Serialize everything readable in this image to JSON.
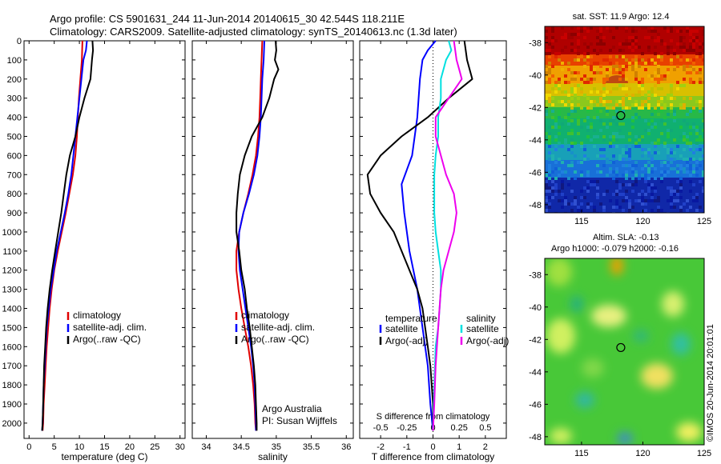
{
  "header": {
    "line1": "Argo profile: CS 5901631_244 11-Jun-2014 20140615_30 42.544S 118.211E",
    "line2": "Climatology: CARS2009. Satellite-adjusted climatology: synTS_20140613.nc (1.3d later)"
  },
  "credits": {
    "line1": "Argo Australia",
    "line2": "PI: Susan Wijffels"
  },
  "stamp": "©IMOS 20-Jun-2014 20:01:01",
  "colors": {
    "climatology": "#e00000",
    "satellite": "#0000ff",
    "argo": "#000000",
    "sal_satellite": "#00e0e0",
    "sal_argo": "#ee00ee"
  },
  "depth_ticks": [
    0,
    100,
    200,
    300,
    400,
    500,
    600,
    700,
    800,
    900,
    1000,
    1100,
    1200,
    1300,
    1400,
    1500,
    1600,
    1700,
    1800,
    1900,
    2000
  ],
  "chart_data": [
    {
      "type": "line",
      "xlabel": "temperature (deg C)",
      "xlim": [
        -1,
        31
      ],
      "ylim": [
        2080,
        0
      ],
      "xticks": [
        0,
        5,
        10,
        15,
        20,
        25,
        30
      ],
      "legend": [
        "climatology",
        "satellite-adj. clim.",
        "Argo(..raw -QC)"
      ],
      "series": [
        {
          "name": "climatology",
          "color": "#e00000",
          "points": [
            [
              10.6,
              0
            ],
            [
              10.5,
              100
            ],
            [
              10.2,
              200
            ],
            [
              9.9,
              300
            ],
            [
              9.7,
              400
            ],
            [
              9.5,
              500
            ],
            [
              9.2,
              600
            ],
            [
              8.7,
              700
            ],
            [
              8.0,
              800
            ],
            [
              7.3,
              900
            ],
            [
              6.5,
              1000
            ],
            [
              5.7,
              1100
            ],
            [
              5.0,
              1200
            ],
            [
              4.5,
              1300
            ],
            [
              4.1,
              1400
            ],
            [
              3.8,
              1500
            ],
            [
              3.5,
              1600
            ],
            [
              3.3,
              1700
            ],
            [
              3.1,
              1800
            ],
            [
              2.9,
              1900
            ],
            [
              2.8,
              2000
            ],
            [
              2.7,
              2040
            ]
          ]
        },
        {
          "name": "satellite-adj. clim.",
          "color": "#0000ff",
          "points": [
            [
              11.5,
              0
            ],
            [
              11.3,
              50
            ],
            [
              10.8,
              100
            ],
            [
              10.4,
              200
            ],
            [
              10.0,
              300
            ],
            [
              9.6,
              400
            ],
            [
              9.2,
              500
            ],
            [
              8.8,
              600
            ],
            [
              8.4,
              700
            ],
            [
              7.8,
              800
            ],
            [
              7.1,
              900
            ],
            [
              6.3,
              1000
            ],
            [
              5.5,
              1100
            ],
            [
              4.9,
              1200
            ],
            [
              4.3,
              1300
            ],
            [
              3.9,
              1400
            ],
            [
              3.5,
              1500
            ],
            [
              3.3,
              1600
            ],
            [
              3.1,
              1700
            ],
            [
              2.9,
              1800
            ],
            [
              2.8,
              1900
            ],
            [
              2.7,
              2000
            ],
            [
              2.6,
              2040
            ]
          ]
        },
        {
          "name": "Argo(..raw -QC)",
          "color": "#000000",
          "points": [
            [
              12.6,
              0
            ],
            [
              12.7,
              50
            ],
            [
              12.5,
              100
            ],
            [
              12.2,
              200
            ],
            [
              11.0,
              300
            ],
            [
              10.0,
              400
            ],
            [
              9.2,
              500
            ],
            [
              8.1,
              600
            ],
            [
              7.4,
              700
            ],
            [
              6.9,
              800
            ],
            [
              6.4,
              900
            ],
            [
              5.8,
              1000
            ],
            [
              5.2,
              1100
            ],
            [
              4.6,
              1200
            ],
            [
              4.1,
              1300
            ],
            [
              3.7,
              1400
            ],
            [
              3.4,
              1500
            ],
            [
              3.2,
              1600
            ],
            [
              3.0,
              1700
            ],
            [
              2.9,
              1800
            ],
            [
              2.8,
              1900
            ],
            [
              2.7,
              2000
            ],
            [
              2.6,
              2040
            ]
          ]
        }
      ]
    },
    {
      "type": "line",
      "xlabel": "salinity",
      "xlim": [
        33.8,
        36.1
      ],
      "ylim": [
        2080,
        0
      ],
      "xticks": [
        34,
        34.5,
        35,
        35.5,
        36
      ],
      "legend": [
        "climatology",
        "satellite-adj. clim.",
        "Argo(..raw -QC)"
      ],
      "series": [
        {
          "name": "climatology",
          "color": "#e00000",
          "points": [
            [
              34.8,
              0
            ],
            [
              34.79,
              100
            ],
            [
              34.78,
              200
            ],
            [
              34.77,
              300
            ],
            [
              34.76,
              400
            ],
            [
              34.74,
              500
            ],
            [
              34.71,
              600
            ],
            [
              34.66,
              700
            ],
            [
              34.6,
              800
            ],
            [
              34.53,
              900
            ],
            [
              34.47,
              1000
            ],
            [
              34.43,
              1100
            ],
            [
              34.43,
              1200
            ],
            [
              34.46,
              1300
            ],
            [
              34.5,
              1400
            ],
            [
              34.55,
              1500
            ],
            [
              34.6,
              1600
            ],
            [
              34.64,
              1700
            ],
            [
              34.67,
              1800
            ],
            [
              34.69,
              1900
            ],
            [
              34.7,
              2000
            ],
            [
              34.71,
              2040
            ]
          ]
        },
        {
          "name": "satellite-adj. clim.",
          "color": "#0000ff",
          "points": [
            [
              34.83,
              0
            ],
            [
              34.82,
              100
            ],
            [
              34.8,
              200
            ],
            [
              34.79,
              300
            ],
            [
              34.78,
              400
            ],
            [
              34.76,
              500
            ],
            [
              34.73,
              600
            ],
            [
              34.68,
              700
            ],
            [
              34.61,
              800
            ],
            [
              34.53,
              900
            ],
            [
              34.47,
              1000
            ],
            [
              34.46,
              1100
            ],
            [
              34.48,
              1200
            ],
            [
              34.52,
              1300
            ],
            [
              34.56,
              1400
            ],
            [
              34.6,
              1500
            ],
            [
              34.64,
              1600
            ],
            [
              34.67,
              1700
            ],
            [
              34.69,
              1800
            ],
            [
              34.7,
              1900
            ],
            [
              34.71,
              2000
            ],
            [
              34.71,
              2040
            ]
          ]
        },
        {
          "name": "Argo(..raw -QC)",
          "color": "#000000",
          "points": [
            [
              34.99,
              0
            ],
            [
              35.0,
              50
            ],
            [
              34.98,
              100
            ],
            [
              35.03,
              150
            ],
            [
              34.97,
              200
            ],
            [
              34.9,
              300
            ],
            [
              34.8,
              400
            ],
            [
              34.65,
              500
            ],
            [
              34.55,
              600
            ],
            [
              34.48,
              700
            ],
            [
              34.45,
              800
            ],
            [
              34.43,
              900
            ],
            [
              34.43,
              1000
            ],
            [
              34.47,
              1100
            ],
            [
              34.5,
              1200
            ],
            [
              34.55,
              1300
            ],
            [
              34.58,
              1400
            ],
            [
              34.62,
              1500
            ],
            [
              34.65,
              1600
            ],
            [
              34.68,
              1700
            ],
            [
              34.7,
              1800
            ],
            [
              34.71,
              1900
            ],
            [
              34.72,
              2000
            ],
            [
              34.72,
              2040
            ]
          ]
        }
      ]
    },
    {
      "type": "line",
      "title": "S difference from climatology",
      "xlabel": "T difference from climatology",
      "xlim": [
        -2.8,
        2.8
      ],
      "ylim": [
        2080,
        0
      ],
      "xticks": [
        -2,
        -1,
        0,
        1,
        2
      ],
      "top_ticks": [
        {
          "x": -2,
          "label": "-0.5"
        },
        {
          "x": -1,
          "label": "-0.25"
        },
        {
          "x": 0,
          "label": "0"
        },
        {
          "x": 1,
          "label": "0.25"
        },
        {
          "x": 2,
          "label": "0.5"
        }
      ],
      "legend_temperature": {
        "title": "temperature",
        "items": [
          "satellite",
          "Argo(-adj)"
        ]
      },
      "legend_salinity": {
        "title": "salinity",
        "items": [
          "satellite",
          "Argo(-adj)"
        ]
      },
      "series": [
        {
          "name": "temperature satellite",
          "color": "#0000ff",
          "points": [
            [
              0.1,
              0
            ],
            [
              -0.2,
              50
            ],
            [
              -0.4,
              100
            ],
            [
              -0.5,
              200
            ],
            [
              -0.6,
              400
            ],
            [
              -0.8,
              600
            ],
            [
              -1.2,
              750
            ],
            [
              -1.1,
              900
            ],
            [
              -0.9,
              1100
            ],
            [
              -0.6,
              1300
            ],
            [
              -0.4,
              1500
            ],
            [
              -0.2,
              1700
            ],
            [
              -0.1,
              1900
            ],
            [
              0,
              2040
            ]
          ]
        },
        {
          "name": "temperature Argo(-adj)",
          "color": "#000000",
          "points": [
            [
              1.2,
              0
            ],
            [
              1.3,
              100
            ],
            [
              1.5,
              200
            ],
            [
              0.6,
              300
            ],
            [
              -0.2,
              400
            ],
            [
              -1.2,
              500
            ],
            [
              -2.0,
              600
            ],
            [
              -2.5,
              700
            ],
            [
              -2.4,
              800
            ],
            [
              -2.0,
              900
            ],
            [
              -1.5,
              1000
            ],
            [
              -1.2,
              1100
            ],
            [
              -0.9,
              1200
            ],
            [
              -0.6,
              1300
            ],
            [
              -0.4,
              1400
            ],
            [
              -0.3,
              1500
            ],
            [
              -0.2,
              1600
            ],
            [
              -0.1,
              1700
            ],
            [
              -0.05,
              1800
            ],
            [
              0,
              1900
            ],
            [
              0,
              2040
            ]
          ]
        },
        {
          "name": "salinity satellite",
          "color": "#00e0e0",
          "points": [
            [
              0.6,
              0
            ],
            [
              0.7,
              50
            ],
            [
              0.5,
              100
            ],
            [
              0.3,
              200
            ],
            [
              0.3,
              300
            ],
            [
              0.2,
              400
            ],
            [
              0.2,
              500
            ],
            [
              0.1,
              600
            ],
            [
              0.05,
              700
            ],
            [
              0.05,
              800
            ],
            [
              0.05,
              900
            ],
            [
              0.1,
              1000
            ],
            [
              0.2,
              1100
            ],
            [
              0.3,
              1200
            ],
            [
              0.3,
              1300
            ],
            [
              0.25,
              1400
            ],
            [
              0.2,
              1500
            ],
            [
              0.1,
              1600
            ],
            [
              0.05,
              1800
            ],
            [
              0,
              2040
            ]
          ]
        },
        {
          "name": "salinity Argo(-adj)",
          "color": "#ee00ee",
          "points": [
            [
              0.8,
              0
            ],
            [
              0.9,
              100
            ],
            [
              1.0,
              150
            ],
            [
              1.1,
              200
            ],
            [
              0.6,
              300
            ],
            [
              0.1,
              400
            ],
            [
              0.1,
              500
            ],
            [
              0.5,
              700
            ],
            [
              0.8,
              800
            ],
            [
              0.9,
              900
            ],
            [
              0.8,
              1000
            ],
            [
              0.6,
              1100
            ],
            [
              0.4,
              1200
            ],
            [
              0.3,
              1300
            ],
            [
              0.2,
              1500
            ],
            [
              0.1,
              1700
            ],
            [
              0.05,
              1900
            ],
            [
              0,
              2040
            ]
          ]
        }
      ]
    },
    {
      "type": "heatmap",
      "title": "sat. SST: 11.9 Argo: 12.4",
      "xlim": [
        112,
        125
      ],
      "ylim": [
        -48.5,
        -37
      ],
      "xticks": [
        115,
        120,
        125
      ],
      "yticks": [
        -38,
        -40,
        -42,
        -44,
        -46,
        -48
      ],
      "marker": {
        "lon": 118.2,
        "lat": -42.5
      }
    },
    {
      "type": "heatmap",
      "title": "Altim. SLA: -0.13",
      "subtitle": "Argo h1000: -0.079 h2000: -0.16",
      "xlim": [
        112,
        125
      ],
      "ylim": [
        -48.5,
        -37
      ],
      "xticks": [
        115,
        120,
        125
      ],
      "yticks": [
        -38,
        -40,
        -42,
        -44,
        -46,
        -48
      ],
      "marker": {
        "lon": 118.2,
        "lat": -42.5
      }
    }
  ]
}
